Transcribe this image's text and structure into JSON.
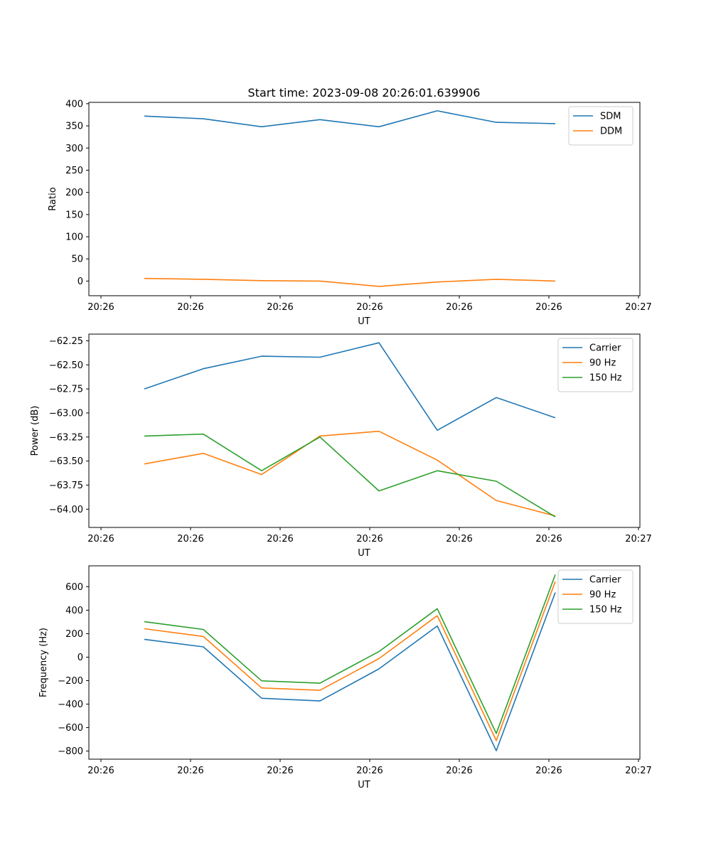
{
  "figure_title": "Start time: 2023-09-08 20:26:01.639906",
  "chart_data": [
    {
      "type": "line",
      "xlabel": "UT",
      "ylabel": "Ratio",
      "xtick_labels": [
        "20:26",
        "20:26",
        "20:26",
        "20:26",
        "20:26",
        "20:26",
        "20:26",
        "20:27"
      ],
      "yticks": [
        0,
        50,
        100,
        150,
        200,
        250,
        300,
        350,
        400
      ],
      "ytick_labels": [
        "0",
        "50",
        "100",
        "150",
        "200",
        "250",
        "300",
        "350",
        "400"
      ],
      "ylim": [
        -33,
        403
      ],
      "legend_position": "top-right",
      "series": [
        {
          "name": "SDM",
          "color": "#1f77b4",
          "values": [
            372,
            366,
            348,
            364,
            348,
            384,
            358,
            355
          ]
        },
        {
          "name": "DDM",
          "color": "#ff7f0e",
          "values": [
            6,
            4,
            1,
            0,
            -12,
            -2,
            4,
            0
          ]
        }
      ]
    },
    {
      "type": "line",
      "xlabel": "UT",
      "ylabel": "Power (dB)",
      "xtick_labels": [
        "20:26",
        "20:26",
        "20:26",
        "20:26",
        "20:26",
        "20:26",
        "20:26",
        "20:27"
      ],
      "yticks": [
        -62.25,
        -62.5,
        -62.75,
        -63.0,
        -63.25,
        -63.5,
        -63.75,
        -64.0
      ],
      "ytick_labels": [
        "−62.25",
        "−62.50",
        "−62.75",
        "−63.00",
        "−63.25",
        "−63.50",
        "−63.75",
        "−64.00"
      ],
      "ylim": [
        -64.19,
        -62.18
      ],
      "legend_position": "top-right",
      "series": [
        {
          "name": "Carrier",
          "color": "#1f77b4",
          "values": [
            -62.75,
            -62.54,
            -62.41,
            -62.42,
            -62.27,
            -63.18,
            -62.84,
            -63.05
          ]
        },
        {
          "name": "90 Hz",
          "color": "#ff7f0e",
          "values": [
            -63.53,
            -63.42,
            -63.64,
            -63.24,
            -63.19,
            -63.49,
            -63.91,
            -64.07
          ]
        },
        {
          "name": "150 Hz",
          "color": "#2ca02c",
          "values": [
            -63.24,
            -63.22,
            -63.6,
            -63.25,
            -63.81,
            -63.6,
            -63.71,
            -64.08
          ]
        }
      ]
    },
    {
      "type": "line",
      "xlabel": "UT",
      "ylabel": "Frequency (Hz)",
      "xtick_labels": [
        "20:26",
        "20:26",
        "20:26",
        "20:26",
        "20:26",
        "20:26",
        "20:26",
        "20:27"
      ],
      "yticks": [
        600,
        400,
        200,
        0,
        -200,
        -400,
        -600,
        -800
      ],
      "ytick_labels": [
        "600",
        "400",
        "200",
        "0",
        "−200",
        "−400",
        "−600",
        "−800"
      ],
      "ylim": [
        -869,
        778
      ],
      "legend_position": "top-right",
      "series": [
        {
          "name": "Carrier",
          "color": "#1f77b4",
          "values": [
            152,
            88,
            -350,
            -373,
            -100,
            266,
            -797,
            551
          ]
        },
        {
          "name": "90 Hz",
          "color": "#ff7f0e",
          "values": [
            242,
            176,
            -262,
            -282,
            -12,
            353,
            -711,
            644
          ]
        },
        {
          "name": "150 Hz",
          "color": "#2ca02c",
          "values": [
            302,
            236,
            -202,
            -222,
            48,
            413,
            -650,
            703
          ]
        }
      ]
    }
  ]
}
